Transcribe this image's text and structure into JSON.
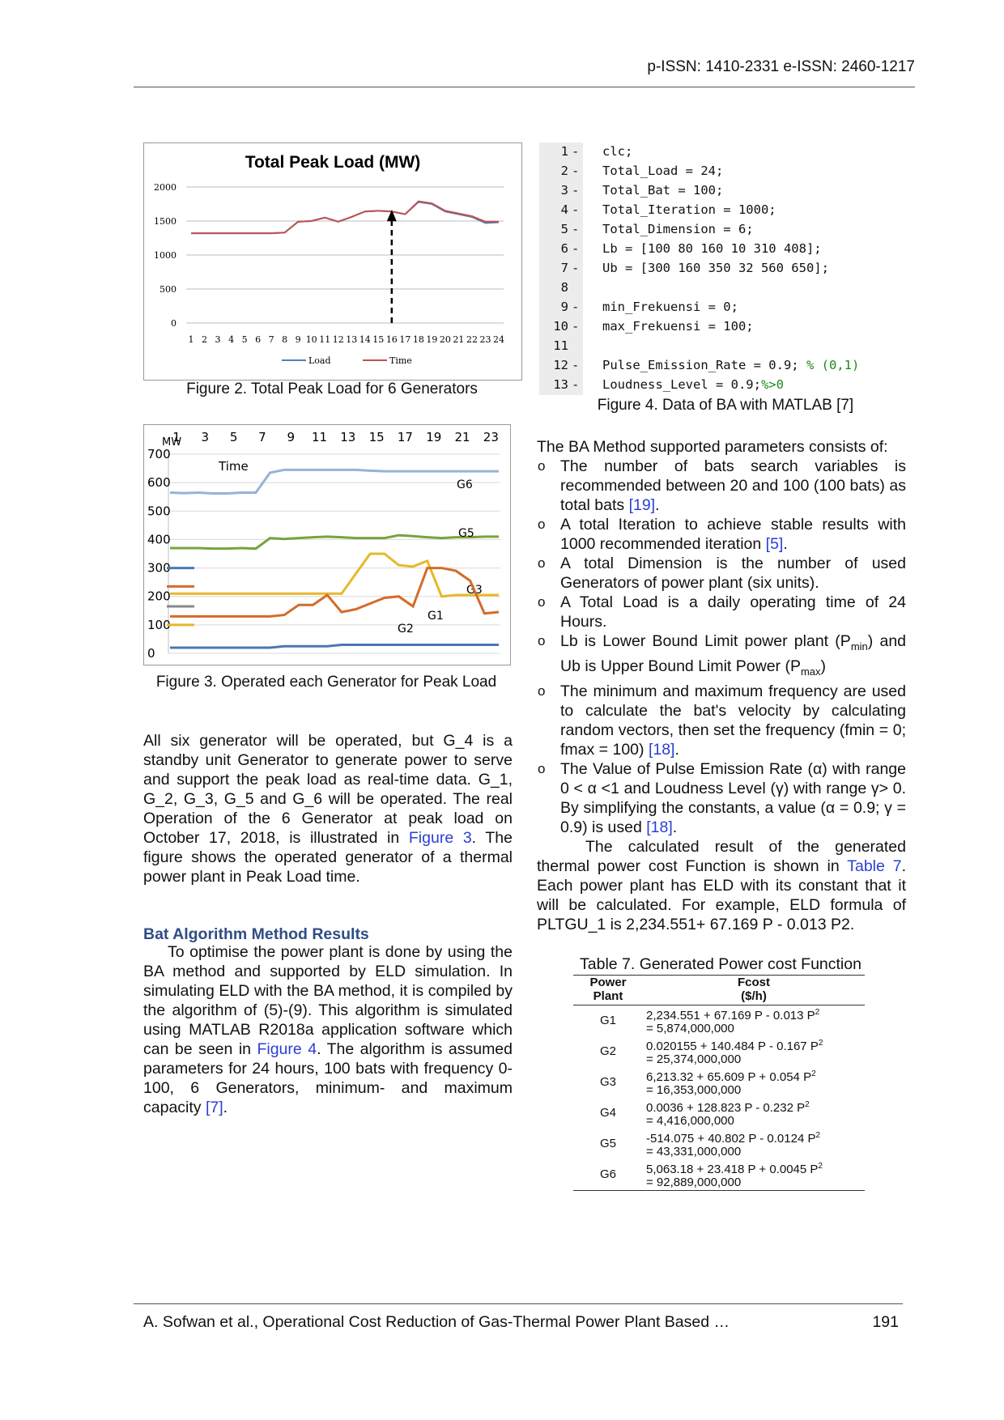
{
  "header": {
    "issn": "p-ISSN: 1410-2331  e-ISSN: 2460-1217"
  },
  "figure2": {
    "caption": "Figure 2. Total Peak Load for 6 Generators",
    "chart_data": {
      "type": "line",
      "title": "Total Peak Load (MW)",
      "x": [
        1,
        2,
        3,
        4,
        5,
        6,
        7,
        8,
        9,
        10,
        11,
        12,
        13,
        14,
        15,
        16,
        17,
        18,
        19,
        20,
        21,
        22,
        23,
        24
      ],
      "ylim": [
        0,
        2000
      ],
      "yticks": [
        0,
        500,
        1000,
        1500,
        2000
      ],
      "series": [
        {
          "name": "Load",
          "color": "#4f81bd",
          "values": [
            1320,
            1320,
            1320,
            1320,
            1320,
            1320,
            1320,
            1330,
            1490,
            1500,
            1550,
            1490,
            1560,
            1640,
            1650,
            1640,
            1600,
            1780,
            1750,
            1640,
            1600,
            1560,
            1470,
            1480
          ]
        },
        {
          "name": "Time",
          "color": "#c0504d",
          "values": [
            1320,
            1320,
            1320,
            1320,
            1320,
            1320,
            1320,
            1330,
            1490,
            1500,
            1550,
            1490,
            1560,
            1640,
            1650,
            1640,
            1600,
            1790,
            1760,
            1650,
            1610,
            1570,
            1490,
            1490
          ]
        }
      ],
      "annotation": {
        "type": "dashed-arrow",
        "x": 16
      }
    }
  },
  "figure3": {
    "caption": "Figure 3. Operated each Generator for Peak Load",
    "chart_data": {
      "type": "line",
      "ylabel": "MW",
      "xlabel": "Time",
      "x_tick_labels": [
        "1",
        "3",
        "5",
        "7",
        "9",
        "11",
        "13",
        "15",
        "17",
        "19",
        "21",
        "23"
      ],
      "ylim": [
        0,
        700
      ],
      "yticks": [
        0,
        100,
        200,
        300,
        400,
        500,
        600,
        700
      ],
      "x": [
        1,
        2,
        3,
        4,
        5,
        6,
        7,
        8,
        9,
        10,
        11,
        12,
        13,
        14,
        15,
        16,
        17,
        18,
        19,
        20,
        21,
        22,
        23,
        24
      ],
      "series": [
        {
          "name": "G6",
          "color": "#95b3d7",
          "values": [
            565,
            563,
            565,
            562,
            562,
            565,
            565,
            635,
            645,
            645,
            645,
            645,
            645,
            645,
            642,
            640,
            640,
            640,
            640,
            640,
            640,
            640,
            640,
            640
          ]
        },
        {
          "name": "G5",
          "color": "#77a33c",
          "values": [
            370,
            370,
            370,
            368,
            368,
            370,
            368,
            405,
            402,
            405,
            408,
            410,
            408,
            405,
            405,
            405,
            415,
            412,
            408,
            405,
            408,
            408,
            410,
            410
          ]
        },
        {
          "name": "G3",
          "color": "#e6b82a",
          "values": [
            210,
            210,
            210,
            210,
            210,
            210,
            210,
            210,
            210,
            210,
            210,
            210,
            210,
            280,
            350,
            350,
            310,
            305,
            325,
            200,
            205,
            205,
            205,
            205
          ]
        },
        {
          "name": "G2",
          "color": "#d46b2a",
          "values": [
            130,
            130,
            130,
            130,
            130,
            130,
            130,
            130,
            135,
            170,
            170,
            205,
            145,
            155,
            175,
            195,
            200,
            165,
            300,
            300,
            290,
            255,
            140,
            145
          ]
        },
        {
          "name": "G1",
          "color": "#4a78b0",
          "values": [
            20,
            20,
            20,
            20,
            20,
            20,
            20,
            20,
            25,
            25,
            25,
            25,
            30,
            30,
            30,
            30,
            30,
            30,
            30,
            30,
            30,
            30,
            30,
            30
          ]
        }
      ],
      "left_markers": [
        {
          "color": "#4a78b0",
          "value": 300
        },
        {
          "color": "#d46b2a",
          "value": 235
        },
        {
          "color": "#e6b82a",
          "value": 100
        },
        {
          "color": "#888888",
          "value": 165
        }
      ]
    }
  },
  "figure4": {
    "caption": "Figure 4. Data of BA with MATLAB [7]",
    "lines": [
      {
        "num": "1",
        "dash": true,
        "code": "clc;"
      },
      {
        "num": "2",
        "dash": true,
        "code": "Total_Load = 24;"
      },
      {
        "num": "3",
        "dash": true,
        "code": "Total_Bat = 100;"
      },
      {
        "num": "4",
        "dash": true,
        "code": "Total_Iteration = 1000;"
      },
      {
        "num": "5",
        "dash": true,
        "code": "Total_Dimension = 6;"
      },
      {
        "num": "6",
        "dash": true,
        "code": "Lb = [100 80 160 10 310 408];"
      },
      {
        "num": "7",
        "dash": true,
        "code": "Ub = [300 160 350 32 560 650];"
      },
      {
        "num": "8",
        "dash": false,
        "code": ""
      },
      {
        "num": "9",
        "dash": true,
        "code": "min_Frekuensi = 0;"
      },
      {
        "num": "10",
        "dash": true,
        "code": "max_Frekuensi = 100;"
      },
      {
        "num": "11",
        "dash": false,
        "code": ""
      },
      {
        "num": "12",
        "dash": true,
        "code": "Pulse_Emission_Rate = 0.9; ",
        "comment": "% (0,1)"
      },
      {
        "num": "13",
        "dash": true,
        "code": "Loudness_Level = 0.9;",
        "comment": "%>0"
      }
    ]
  },
  "left_text": {
    "para1_a": "All six generator will be operated, but G_4 is a standby unit Generator to generate power to serve and support the peak load as real-time data. G_1, G_2, G_3, G_5 and G_6 will be operated. The real Operation of the 6 Generator at peak load on October 17, 2018, is illustrated in ",
    "para1_link": "Figure 3",
    "para1_b": ". The figure shows the operated generator of a thermal power plant in Peak Load time.",
    "section_title": "Bat Algorithm Method Results",
    "para2_a": "To optimise the power plant is done by using the BA method and supported by ELD simulation. In simulating ELD with the BA method, it is compiled by the algorithm of (5)-(9). This algorithm is simulated using MATLAB R2018a application software which can be seen in ",
    "para2_link": "Figure 4",
    "para2_b": ". The algorithm is assumed parameters for 24 hours, 100 bats with frequency 0-100, 6 Generators, minimum- and maximum capacity ",
    "para2_ref": "[7]",
    "para2_c": "."
  },
  "right_text": {
    "intro": "The BA Method supported parameters consists of:",
    "b1_a": "The number of bats search variables is recommended between 20 and 100 (100 bats) as total bats ",
    "b1_ref": "[19]",
    "b1_b": ".",
    "b2_a": "A total Iteration to achieve stable results with 1000 recommended iteration ",
    "b2_ref": "[5]",
    "b2_b": ".",
    "b3": "A total Dimension is the number of used Generators of power plant (six units).",
    "b4": "A Total Load is a daily operating time of 24 Hours.",
    "b5_a": "Lb is Lower Bound Limit power plant (P",
    "b5_sub1": "min",
    "b5_b": ") and Ub is Upper Bound Limit Power (P",
    "b5_sub2": "max",
    "b5_c": ")",
    "b6_a": "The minimum and maximum frequency are used to calculate the bat's velocity by calculating random vectors, then set the frequency (fmin = 0; fmax = 100) ",
    "b6_ref": "[18]",
    "b6_b": ".",
    "b7_a": "The Value of Pulse Emission Rate (α) with range 0 < α <1 and Loudness Level (γ) with range γ> 0. By simplifying the constants, a value (α = 0.9; γ = 0.9) is used ",
    "b7_ref": "[18]",
    "b7_b": ".",
    "para_a": "The calculated result of the generated thermal power cost Function is shown in ",
    "para_link": "Table 7",
    "para_b": ". Each power plant has ELD with its constant that it will be calculated. For example, ELD formula of PLTGU_1 is 2,234.551+ 67.169 P - 0.013 P2."
  },
  "table7": {
    "caption": "Table 7. Generated Power cost Function",
    "col1": "Power\nPlant",
    "col2": "Fcost\n($/h)",
    "rows": [
      {
        "plant": "G1",
        "formula": "2,234.551 + 67.169 P - 0.013 P",
        "sup": "2",
        "value": "= 5,874,000,000"
      },
      {
        "plant": "G2",
        "formula": "0.020155 + 140.484 P - 0.167 P",
        "sup": "2",
        "value": "= 25,374,000,000"
      },
      {
        "plant": "G3",
        "formula": "6,213.32 + 65.609 P + 0.054 P",
        "sup": "2",
        "value": "= 16,353,000,000"
      },
      {
        "plant": "G4",
        "formula": "0.0036 + 128.823 P - 0.232 P",
        "sup": "2",
        "value": "= 4,416,000,000"
      },
      {
        "plant": "G5",
        "formula": "-514.075 + 40.802 P - 0.0124 P",
        "sup": "2",
        "value": "= 43,331,000,000"
      },
      {
        "plant": "G6",
        "formula": "5,063.18 + 23.418 P + 0.0045 P",
        "sup": "2",
        "value": "= 92,889,000,000"
      }
    ]
  },
  "footer": {
    "citation": "A. Sofwan et al., Operational Cost Reduction of Gas-Thermal Power Plant Based …",
    "page": "191"
  }
}
